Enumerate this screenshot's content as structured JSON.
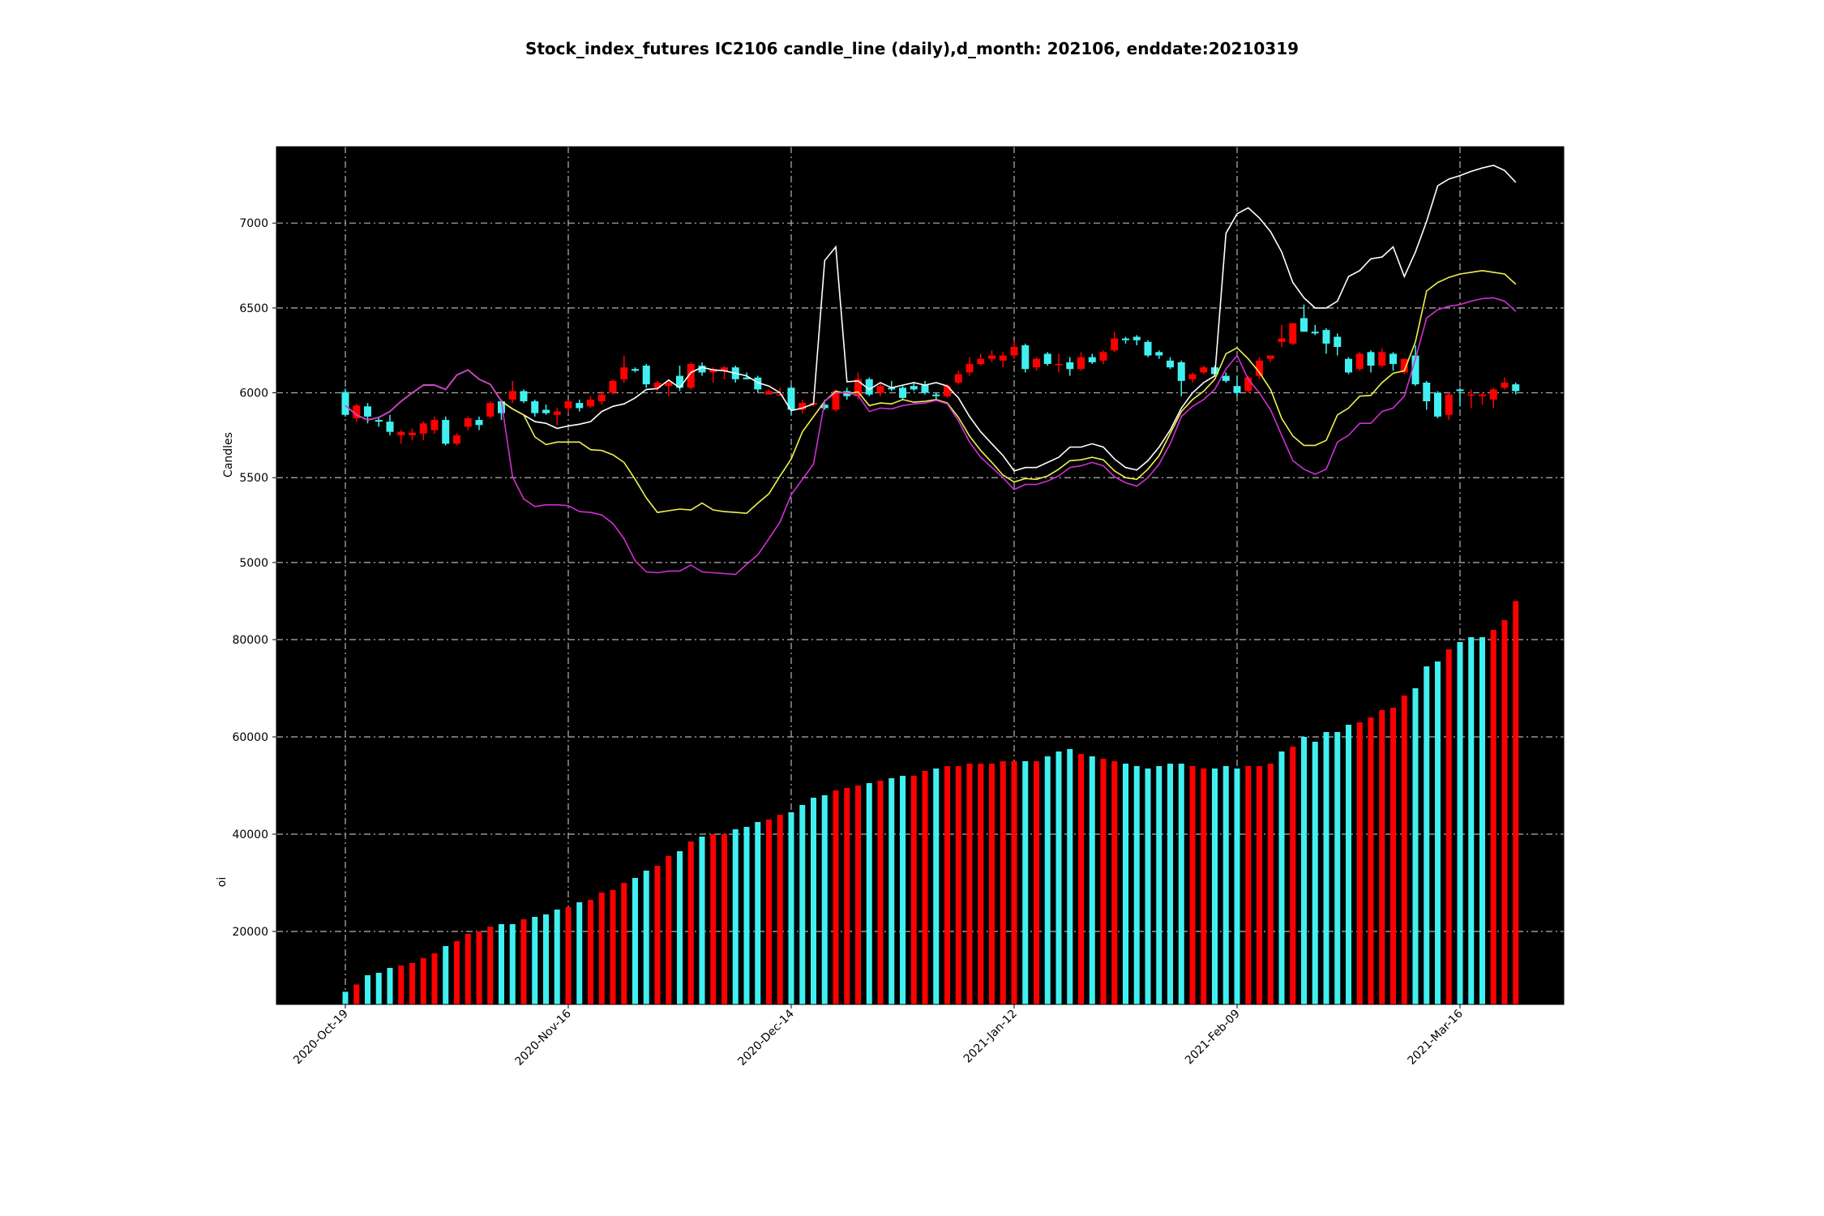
{
  "chart_data": {
    "type": "candlestick",
    "title": "Stock_index_futures IC2106 candle_line (daily),d_month: 202106, enddate:20210319",
    "xtick_labels": [
      "2020-Oct-19",
      "2020-Nov-16",
      "2020-Dec-14",
      "2021-Jan-12",
      "2021-Feb-09",
      "2021-Mar-16"
    ],
    "xtick_index": [
      0,
      20,
      40,
      60,
      80,
      100
    ],
    "colors": {
      "up": "#ff0000",
      "down": "#40f0f0",
      "background": "#000000",
      "grid": "#b4b4b4"
    },
    "candles": {
      "ylabel": "Candles",
      "ylim": [
        4775,
        7450
      ],
      "yticks": [
        5000,
        5500,
        6000,
        6500,
        7000
      ],
      "ohlc": [
        [
          6005,
          6025,
          5860,
          5870
        ],
        [
          5850,
          5935,
          5830,
          5925
        ],
        [
          5920,
          5940,
          5820,
          5860
        ],
        [
          5840,
          5860,
          5800,
          5830
        ],
        [
          5830,
          5870,
          5750,
          5770
        ],
        [
          5750,
          5780,
          5700,
          5770
        ],
        [
          5750,
          5790,
          5720,
          5765
        ],
        [
          5760,
          5830,
          5720,
          5820
        ],
        [
          5780,
          5860,
          5760,
          5840
        ],
        [
          5840,
          5860,
          5690,
          5700
        ],
        [
          5700,
          5760,
          5690,
          5750
        ],
        [
          5800,
          5860,
          5780,
          5850
        ],
        [
          5840,
          5860,
          5780,
          5810
        ],
        [
          5860,
          5950,
          5850,
          5940
        ],
        [
          5950,
          5960,
          5840,
          5880
        ],
        [
          5960,
          6070,
          5940,
          6010
        ],
        [
          6010,
          6020,
          5940,
          5950
        ],
        [
          5950,
          5960,
          5860,
          5880
        ],
        [
          5900,
          5930,
          5870,
          5880
        ],
        [
          5870,
          5910,
          5810,
          5890
        ],
        [
          5910,
          5960,
          5880,
          5950
        ],
        [
          5940,
          5960,
          5890,
          5910
        ],
        [
          5920,
          5980,
          5910,
          5960
        ],
        [
          5950,
          6010,
          5930,
          5990
        ],
        [
          6000,
          6080,
          5990,
          6070
        ],
        [
          6080,
          6220,
          6060,
          6150
        ],
        [
          6140,
          6150,
          6120,
          6130
        ],
        [
          6160,
          6170,
          6030,
          6050
        ],
        [
          6030,
          6070,
          6010,
          6060
        ],
        [
          6040,
          6080,
          5980,
          6060
        ],
        [
          6100,
          6160,
          6010,
          6030
        ],
        [
          6030,
          6180,
          6020,
          6170
        ],
        [
          6160,
          6180,
          6100,
          6120
        ],
        [
          6120,
          6150,
          6060,
          6140
        ],
        [
          6130,
          6160,
          6080,
          6150
        ],
        [
          6150,
          6160,
          6060,
          6080
        ],
        [
          6090,
          6120,
          6080,
          6080
        ],
        [
          6090,
          6100,
          6000,
          6020
        ],
        [
          5990,
          6020,
          5990,
          6010
        ],
        [
          5990,
          6030,
          5990,
          5990
        ],
        [
          6030,
          6040,
          5870,
          5900
        ],
        [
          5900,
          5960,
          5880,
          5940
        ],
        [
          5930,
          5980,
          5920,
          5940
        ],
        [
          5930,
          5960,
          5900,
          5910
        ],
        [
          5900,
          6020,
          5890,
          6010
        ],
        [
          6010,
          6030,
          5960,
          5980
        ],
        [
          5980,
          6120,
          5960,
          6080
        ],
        [
          6080,
          6090,
          5980,
          5990
        ],
        [
          6000,
          6060,
          5980,
          6040
        ],
        [
          6030,
          6070,
          6010,
          6020
        ],
        [
          6030,
          6040,
          5960,
          5970
        ],
        [
          6040,
          6060,
          6010,
          6020
        ],
        [
          6050,
          6070,
          5990,
          6000
        ],
        [
          5990,
          6000,
          5960,
          5980
        ],
        [
          5980,
          6050,
          5970,
          6040
        ],
        [
          6060,
          6130,
          6050,
          6110
        ],
        [
          6120,
          6210,
          6100,
          6170
        ],
        [
          6170,
          6230,
          6160,
          6200
        ],
        [
          6200,
          6250,
          6180,
          6220
        ],
        [
          6190,
          6240,
          6150,
          6220
        ],
        [
          6220,
          6310,
          6200,
          6270
        ],
        [
          6280,
          6290,
          6120,
          6140
        ],
        [
          6150,
          6210,
          6130,
          6200
        ],
        [
          6230,
          6240,
          6160,
          6170
        ],
        [
          6170,
          6230,
          6120,
          6170
        ],
        [
          6180,
          6210,
          6100,
          6140
        ],
        [
          6140,
          6240,
          6130,
          6210
        ],
        [
          6210,
          6230,
          6170,
          6180
        ],
        [
          6190,
          6250,
          6170,
          6240
        ],
        [
          6250,
          6360,
          6240,
          6320
        ],
        [
          6320,
          6330,
          6290,
          6310
        ],
        [
          6330,
          6340,
          6280,
          6310
        ],
        [
          6300,
          6310,
          6210,
          6220
        ],
        [
          6240,
          6250,
          6200,
          6220
        ],
        [
          6190,
          6210,
          6140,
          6150
        ],
        [
          6180,
          6190,
          5980,
          6070
        ],
        [
          6080,
          6120,
          6060,
          6110
        ],
        [
          6120,
          6160,
          6110,
          6150
        ],
        [
          6150,
          6160,
          6100,
          6110
        ],
        [
          6100,
          6120,
          6060,
          6070
        ],
        [
          6040,
          6100,
          5980,
          6000
        ],
        [
          6010,
          6100,
          6000,
          6090
        ],
        [
          6100,
          6210,
          6080,
          6190
        ],
        [
          6200,
          6220,
          6180,
          6220
        ],
        [
          6300,
          6400,
          6270,
          6320
        ],
        [
          6290,
          6410,
          6280,
          6410
        ],
        [
          6440,
          6520,
          6360,
          6360
        ],
        [
          6360,
          6400,
          6340,
          6350
        ],
        [
          6370,
          6380,
          6230,
          6290
        ],
        [
          6330,
          6350,
          6220,
          6270
        ],
        [
          6200,
          6210,
          6110,
          6120
        ],
        [
          6140,
          6240,
          6130,
          6230
        ],
        [
          6240,
          6250,
          6120,
          6160
        ],
        [
          6160,
          6260,
          6150,
          6240
        ],
        [
          6230,
          6240,
          6130,
          6170
        ],
        [
          6120,
          6200,
          6110,
          6200
        ],
        [
          6220,
          6280,
          6040,
          6050
        ],
        [
          6060,
          6070,
          5900,
          5950
        ],
        [
          6000,
          6010,
          5850,
          5860
        ],
        [
          5870,
          6000,
          5840,
          5990
        ],
        [
          6020,
          6030,
          5920,
          6010
        ],
        [
          5990,
          6020,
          5910,
          5990
        ],
        [
          5980,
          6000,
          5930,
          5990
        ],
        [
          5960,
          6030,
          5910,
          6020
        ],
        [
          6030,
          6090,
          6020,
          6060
        ],
        [
          6050,
          6060,
          5990,
          6010
        ]
      ],
      "lines": {
        "white": [
          5925,
          5870,
          5840,
          5855,
          5890,
          5950,
          6000,
          6045,
          6045,
          6020,
          6105,
          6135,
          6080,
          6050,
          5950,
          5905,
          5870,
          5830,
          5820,
          5790,
          5805,
          5815,
          5830,
          5890,
          5920,
          5935,
          5970,
          6020,
          6025,
          6075,
          6030,
          6120,
          6150,
          6135,
          6130,
          6115,
          6100,
          6060,
          6040,
          6000,
          5895,
          5910,
          5935,
          6780,
          6860,
          6065,
          6070,
          6020,
          6060,
          6030,
          6045,
          6060,
          6045,
          6060,
          6040,
          5970,
          5860,
          5770,
          5700,
          5630,
          5540,
          5560,
          5560,
          5590,
          5620,
          5680,
          5680,
          5700,
          5680,
          5610,
          5560,
          5545,
          5600,
          5680,
          5780,
          5910,
          6000,
          6060,
          6100,
          6940,
          7055,
          7090,
          7030,
          6950,
          6830,
          6650,
          6560,
          6500,
          6500,
          6540,
          6685,
          6720,
          6790,
          6800,
          6860,
          6685,
          6830,
          7010,
          7220,
          7260,
          7280,
          7305,
          7325,
          7340,
          7310,
          7240
        ],
        "yellow": [
          5925,
          5870,
          5840,
          5855,
          5890,
          5950,
          6000,
          6045,
          6045,
          6020,
          6105,
          6135,
          6080,
          6050,
          5950,
          5905,
          5870,
          5740,
          5695,
          5710,
          5710,
          5710,
          5665,
          5660,
          5635,
          5590,
          5490,
          5380,
          5295,
          5305,
          5315,
          5310,
          5350,
          5310,
          5300,
          5295,
          5290,
          5350,
          5405,
          5510,
          5610,
          5770,
          5860,
          5950,
          6010,
          5995,
          6005,
          5925,
          5940,
          5935,
          5960,
          5945,
          5950,
          5960,
          5940,
          5855,
          5745,
          5660,
          5590,
          5515,
          5475,
          5495,
          5490,
          5510,
          5550,
          5600,
          5605,
          5620,
          5605,
          5540,
          5500,
          5490,
          5550,
          5630,
          5760,
          5890,
          5960,
          6010,
          6080,
          6230,
          6265,
          6200,
          6120,
          6020,
          5850,
          5745,
          5690,
          5690,
          5720,
          5870,
          5910,
          5980,
          5985,
          6060,
          6115,
          6130,
          6300,
          6600,
          6650,
          6680,
          6700,
          6710,
          6720,
          6710,
          6700,
          6640
        ],
        "magenta": [
          5925,
          5870,
          5840,
          5855,
          5890,
          5950,
          6000,
          6045,
          6045,
          6020,
          6105,
          6135,
          6080,
          6050,
          5950,
          5505,
          5375,
          5330,
          5340,
          5340,
          5335,
          5300,
          5295,
          5280,
          5230,
          5140,
          5010,
          4945,
          4940,
          4950,
          4950,
          4985,
          4945,
          4940,
          4935,
          4930,
          4990,
          5045,
          5140,
          5240,
          5400,
          5490,
          5580,
          5950,
          6000,
          6000,
          5985,
          5890,
          5910,
          5905,
          5925,
          5935,
          5940,
          5955,
          5935,
          5835,
          5710,
          5620,
          5560,
          5500,
          5430,
          5460,
          5460,
          5480,
          5510,
          5560,
          5570,
          5590,
          5570,
          5505,
          5470,
          5450,
          5500,
          5580,
          5700,
          5860,
          5920,
          5960,
          6020,
          6140,
          6220,
          6080,
          6000,
          5900,
          5750,
          5600,
          5550,
          5520,
          5550,
          5710,
          5750,
          5820,
          5820,
          5890,
          5910,
          5980,
          6200,
          6440,
          6490,
          6510,
          6520,
          6540,
          6555,
          6560,
          6540,
          6480
        ]
      }
    },
    "oi": {
      "ylabel": "oi",
      "ylim": [
        5000,
        88000
      ],
      "yticks": [
        20000,
        40000,
        60000,
        80000
      ],
      "values": [
        7600,
        9100,
        11000,
        11500,
        12500,
        13000,
        13500,
        14500,
        15500,
        17000,
        18000,
        19500,
        20000,
        21000,
        21500,
        21500,
        22500,
        23000,
        23500,
        24500,
        25000,
        26000,
        26500,
        28000,
        28500,
        30000,
        31000,
        32500,
        33500,
        35500,
        36500,
        38500,
        39500,
        40000,
        40000,
        41000,
        41500,
        42500,
        43000,
        44000,
        44500,
        46000,
        47500,
        48000,
        49000,
        49500,
        50000,
        50500,
        51000,
        51500,
        52000,
        52000,
        53000,
        53500,
        54000,
        54000,
        54500,
        54500,
        54500,
        55000,
        55000,
        55000,
        55000,
        56000,
        57000,
        57500,
        56500,
        56000,
        55500,
        55000,
        54500,
        54000,
        53500,
        54000,
        54500,
        54500,
        54000,
        53500,
        53500,
        54000,
        53500,
        54000,
        54000,
        54500,
        57000,
        58000,
        60000,
        59000,
        61000,
        61000,
        62500,
        63000,
        64000,
        65500,
        66000,
        68500,
        70000,
        74500,
        75500,
        78000,
        79500,
        80500,
        80500,
        82000,
        84000,
        88000
      ],
      "up": [
        false,
        true,
        false,
        false,
        false,
        true,
        true,
        true,
        true,
        false,
        true,
        true,
        true,
        true,
        false,
        false,
        true,
        false,
        false,
        false,
        true,
        false,
        true,
        true,
        true,
        true,
        false,
        false,
        true,
        true,
        false,
        true,
        false,
        true,
        true,
        false,
        false,
        false,
        true,
        true,
        false,
        false,
        false,
        false,
        true,
        true,
        true,
        false,
        true,
        false,
        false,
        true,
        true,
        false,
        true,
        true,
        true,
        true,
        true,
        true,
        true,
        false,
        true,
        false,
        false,
        false,
        true,
        false,
        true,
        true,
        false,
        false,
        false,
        false,
        false,
        false,
        true,
        true,
        false,
        false,
        false,
        true,
        true,
        true,
        false,
        true,
        false,
        false,
        false,
        false,
        false,
        true,
        true,
        true,
        true,
        true,
        false,
        false,
        false,
        true,
        false,
        false,
        false,
        true,
        true,
        true
      ]
    }
  }
}
